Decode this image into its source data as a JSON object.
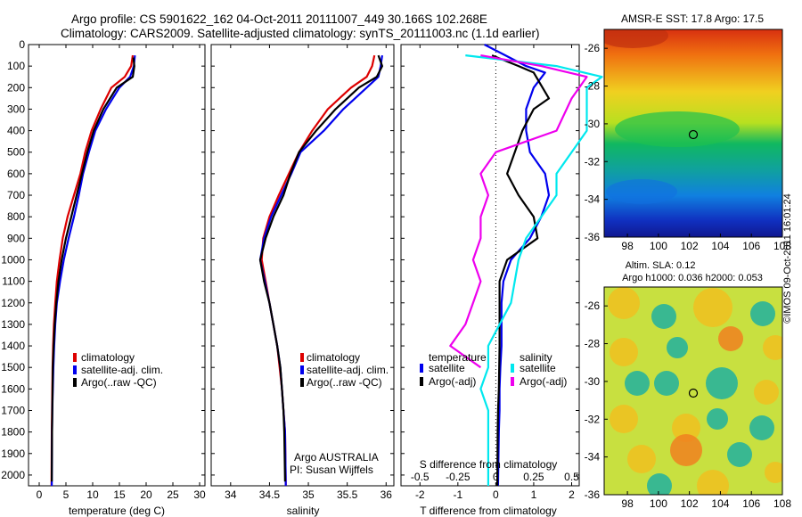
{
  "header": {
    "line1": "Argo profile: CS 5901622_162 04-Oct-2011 20111007_449 30.166S 102.268E",
    "line2": "Climatology: CARS2009. Satellite-adjusted climatology: synTS_20111003.nc (1.1d earlier)"
  },
  "colors": {
    "climatology": "#dd0000",
    "satellite": "#0000ee",
    "argo": "#000000",
    "salinity_sat": "#00e8ee",
    "salinity_argo": "#ee00ee"
  },
  "chart_data": [
    {
      "type": "line",
      "xlabel": "temperature (deg C)",
      "ylabel": "",
      "xlim": [
        -2,
        31
      ],
      "ylim": [
        2050,
        0
      ],
      "xticks": [
        "0",
        "5",
        "10",
        "15",
        "20",
        "25",
        "30"
      ],
      "yticks": [
        "0",
        "100",
        "200",
        "300",
        "400",
        "500",
        "600",
        "700",
        "800",
        "900",
        "1000",
        "1100",
        "1200",
        "1300",
        "1400",
        "1500",
        "1600",
        "1700",
        "1800",
        "1900",
        "2000"
      ],
      "legend": [
        "climatology",
        "satellite-adj. clim.",
        "Argo(..raw -QC)"
      ],
      "series": [
        {
          "name": "climatology",
          "color": "#dd0000",
          "x": [
            17.5,
            17.2,
            16,
            13.5,
            11.5,
            9.8,
            8.6,
            7.7,
            6.5,
            5.3,
            4.4,
            3.8,
            3.3,
            3.0,
            2.75,
            2.6,
            2.5,
            2.45,
            2.4,
            2.35,
            2.3
          ],
          "y": [
            50,
            100,
            150,
            200,
            300,
            400,
            500,
            600,
            700,
            800,
            900,
            1000,
            1100,
            1200,
            1300,
            1400,
            1500,
            1600,
            1700,
            1800,
            2050
          ]
        },
        {
          "name": "satellite-adj. clim.",
          "color": "#0000ee",
          "x": [
            17.9,
            17.7,
            17,
            15,
            12.5,
            10.5,
            9.3,
            8.2,
            7.4,
            6.5,
            5.5,
            4.6,
            3.9,
            3.3,
            3.0,
            2.8,
            2.65,
            2.55,
            2.45,
            2.4,
            2.35
          ],
          "y": [
            50,
            100,
            150,
            200,
            300,
            400,
            500,
            600,
            700,
            800,
            900,
            1000,
            1100,
            1200,
            1300,
            1400,
            1500,
            1600,
            1700,
            1800,
            2050
          ]
        },
        {
          "name": "Argo(..raw -QC)",
          "color": "#000000",
          "x": [
            17.6,
            17.8,
            17.5,
            14.5,
            12,
            10.2,
            9.0,
            8.0,
            7.0,
            6.0,
            5.0,
            4.2,
            3.6,
            3.2,
            2.9,
            2.7,
            2.55,
            2.5,
            2.45,
            2.4,
            2.35
          ],
          "y": [
            60,
            100,
            150,
            200,
            300,
            400,
            500,
            600,
            700,
            800,
            900,
            1000,
            1100,
            1200,
            1300,
            1400,
            1500,
            1600,
            1700,
            1800,
            2030
          ]
        }
      ]
    },
    {
      "type": "line",
      "xlabel": "salinity",
      "xlim": [
        33.75,
        36.1
      ],
      "ylim": [
        2050,
        0
      ],
      "xticks": [
        "34",
        "34.5",
        "35",
        "35.5",
        "36"
      ],
      "legend": [
        "climatology",
        "satellite-adj. clim.",
        "Argo(..raw -QC)"
      ],
      "annotation": [
        "Argo AUSTRALIA",
        "PI: Susan Wijffels"
      ],
      "series": [
        {
          "name": "climatology",
          "color": "#dd0000",
          "x": [
            35.85,
            35.82,
            35.75,
            35.55,
            35.25,
            35.05,
            34.88,
            34.75,
            34.62,
            34.5,
            34.42,
            34.4,
            34.45,
            34.5,
            34.55,
            34.6,
            34.63,
            34.66,
            34.68,
            34.7,
            34.71
          ],
          "y": [
            50,
            100,
            150,
            200,
            300,
            400,
            500,
            600,
            700,
            800,
            900,
            1000,
            1100,
            1200,
            1300,
            1400,
            1500,
            1600,
            1700,
            1800,
            2050
          ]
        },
        {
          "name": "satellite-adj. clim.",
          "color": "#0000ee",
          "x": [
            35.95,
            35.93,
            35.9,
            35.75,
            35.45,
            35.2,
            34.9,
            34.78,
            34.65,
            34.52,
            34.43,
            34.38,
            34.44,
            34.5,
            34.55,
            34.6,
            34.64,
            34.66,
            34.68,
            34.7,
            34.71
          ],
          "y": [
            50,
            100,
            150,
            200,
            300,
            400,
            500,
            600,
            700,
            800,
            900,
            1000,
            1100,
            1200,
            1300,
            1400,
            1500,
            1600,
            1700,
            1800,
            2050
          ]
        },
        {
          "name": "Argo(..raw -QC)",
          "color": "#000000",
          "x": [
            35.9,
            35.95,
            35.88,
            35.65,
            35.35,
            35.1,
            34.88,
            34.77,
            34.68,
            34.55,
            34.45,
            34.38,
            34.43,
            34.5,
            34.55,
            34.6,
            34.64,
            34.66,
            34.68,
            34.69,
            34.7
          ],
          "y": [
            50,
            100,
            150,
            200,
            300,
            400,
            500,
            600,
            700,
            800,
            900,
            1000,
            1100,
            1200,
            1300,
            1400,
            1500,
            1600,
            1700,
            1800,
            2030
          ]
        }
      ]
    },
    {
      "type": "line",
      "xlabel": "T difference from climatology",
      "x2label": "S difference from climatology",
      "xlim": [
        -2.5,
        2.2
      ],
      "ylim": [
        2050,
        0
      ],
      "xticks": [
        "-2",
        "-1",
        "0",
        "1",
        "2"
      ],
      "x2ticks": [
        "-0.5",
        "-0.25",
        "0",
        "0.25",
        "0.5"
      ],
      "legend_groups": [
        {
          "title": "temperature",
          "items": [
            "satellite",
            "Argo(-adj)"
          ]
        },
        {
          "title": "salinity",
          "items": [
            "satellite",
            "Argo(-adj)"
          ]
        }
      ],
      "series": [
        {
          "name": "temperature satellite",
          "color": "#0000ee",
          "x": [
            -0.3,
            0.8,
            1.3,
            1.0,
            0.8,
            0.8,
            0.9,
            1.3,
            1.4,
            1.2,
            0.9,
            0.4,
            0.2,
            0.15,
            0.15,
            0.12,
            0.1,
            0.1,
            0.08,
            0.06
          ],
          "y": [
            0,
            100,
            130,
            200,
            300,
            400,
            500,
            600,
            700,
            800,
            900,
            1000,
            1100,
            1200,
            1400,
            1500,
            1600,
            1700,
            1800,
            2050
          ]
        },
        {
          "name": "temperature Argo(-adj)",
          "color": "#000000",
          "x": [
            -0.1,
            0.6,
            1.0,
            1.4,
            1.0,
            0.7,
            0.5,
            0.3,
            0.6,
            1.0,
            1.1,
            0.3,
            0.1,
            0.1,
            0.1,
            0.08,
            0.06,
            0.05,
            0.04
          ],
          "y": [
            50,
            100,
            130,
            250,
            300,
            400,
            500,
            600,
            700,
            800,
            900,
            1000,
            1100,
            1200,
            1400,
            1600,
            1700,
            1800,
            2050
          ]
        },
        {
          "name": "salinity satellite",
          "color": "#00e8ee",
          "x": [
            -0.2,
            0.4,
            0.7,
            0.6,
            0.6,
            0.6,
            0.5,
            0.4,
            0.4,
            0.3,
            0.2,
            0.15,
            0.1,
            -0.05,
            -0.05,
            -0.1,
            -0.05,
            -0.05,
            -0.05
          ],
          "y": [
            50,
            100,
            150,
            200,
            300,
            400,
            500,
            600,
            700,
            800,
            900,
            1000,
            1200,
            1400,
            1500,
            1600,
            1700,
            1800,
            2050
          ]
        },
        {
          "name": "salinity Argo(-adj)",
          "color": "#ee00ee",
          "x": [
            -0.1,
            0.3,
            0.6,
            0.5,
            0.4,
            0.0,
            -0.1,
            -0.05,
            -0.1,
            -0.1,
            -0.15,
            -0.1,
            -0.15,
            -0.2,
            -0.3,
            -0.1
          ],
          "y": [
            50,
            100,
            150,
            250,
            400,
            500,
            600,
            700,
            800,
            900,
            1000,
            1100,
            1200,
            1300,
            1400,
            1500
          ]
        }
      ]
    },
    {
      "type": "heatmap",
      "title": "AMSR-E SST: 17.8 Argo: 17.5",
      "xticks": [
        "98",
        "100",
        "102",
        "104",
        "106",
        "108"
      ],
      "yticks": [
        "-26",
        "-28",
        "-30",
        "-32",
        "-34",
        "-36"
      ],
      "xlim": [
        96.5,
        108
      ],
      "ylim": [
        -36,
        -25
      ],
      "marker": {
        "lon": 102.27,
        "lat": -30.17
      },
      "colormap": "jet"
    },
    {
      "type": "heatmap",
      "title_line1": "Altim. SLA: 0.12",
      "title_line2": "Argo h1000: 0.036 h2000: 0.053",
      "xticks": [
        "98",
        "100",
        "102",
        "104",
        "106",
        "108"
      ],
      "yticks": [
        "-26",
        "-28",
        "-30",
        "-32",
        "-34",
        "-36"
      ],
      "xlim": [
        96.5,
        108
      ],
      "ylim": [
        -36,
        -25
      ],
      "marker": {
        "lon": 102.27,
        "lat": -30.17
      },
      "colormap": "jet"
    }
  ],
  "credit": "©IMOS 09-Oct-2011 16:01:24"
}
